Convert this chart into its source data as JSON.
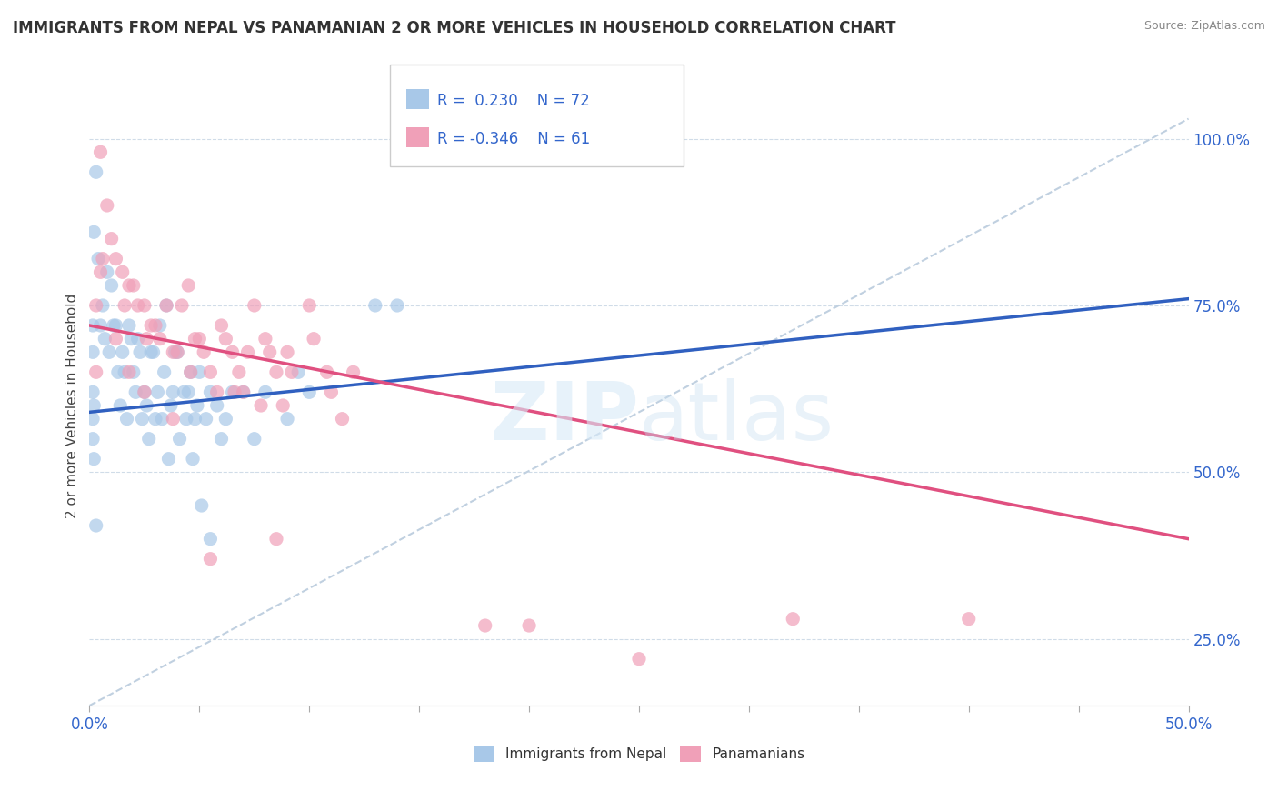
{
  "title": "IMMIGRANTS FROM NEPAL VS PANAMANIAN 2 OR MORE VEHICLES IN HOUSEHOLD CORRELATION CHART",
  "source": "Source: ZipAtlas.com",
  "ylabel_label": "2 or more Vehicles in Household",
  "xmin": 0.0,
  "xmax": 50.0,
  "ymin": 15.0,
  "ymax": 105.0,
  "nepal_R": 0.23,
  "nepal_N": 72,
  "panama_R": -0.346,
  "panama_N": 61,
  "nepal_color": "#a8c8e8",
  "panama_color": "#f0a0b8",
  "nepal_line_color": "#3060c0",
  "panama_line_color": "#e05080",
  "ref_line_color": "#c0d0e0",
  "legend_R_color": "#3366cc",
  "nepal_line_x0": 0.0,
  "nepal_line_y0": 59.0,
  "nepal_line_x1": 50.0,
  "nepal_line_y1": 76.0,
  "panama_line_x0": 0.0,
  "panama_line_y0": 72.0,
  "panama_line_x1": 50.0,
  "panama_line_y1": 40.0,
  "ref_line_x0": 0.0,
  "ref_line_y0": 15.0,
  "ref_line_x1": 50.0,
  "ref_line_y1": 103.0,
  "nepal_scatter": [
    [
      0.2,
      86
    ],
    [
      0.5,
      72
    ],
    [
      0.8,
      80
    ],
    [
      1.0,
      78
    ],
    [
      1.2,
      72
    ],
    [
      1.5,
      68
    ],
    [
      1.8,
      72
    ],
    [
      2.0,
      65
    ],
    [
      2.2,
      70
    ],
    [
      2.5,
      62
    ],
    [
      2.8,
      68
    ],
    [
      3.0,
      58
    ],
    [
      3.2,
      72
    ],
    [
      3.5,
      75
    ],
    [
      3.8,
      62
    ],
    [
      4.0,
      68
    ],
    [
      4.5,
      62
    ],
    [
      4.8,
      58
    ],
    [
      5.0,
      65
    ],
    [
      5.5,
      62
    ],
    [
      6.0,
      55
    ],
    [
      6.5,
      62
    ],
    [
      7.0,
      62
    ],
    [
      7.5,
      55
    ],
    [
      8.0,
      62
    ],
    [
      9.0,
      58
    ],
    [
      10.0,
      62
    ],
    [
      13.0,
      75
    ],
    [
      14.0,
      75
    ],
    [
      0.3,
      95
    ],
    [
      0.4,
      82
    ],
    [
      0.6,
      75
    ],
    [
      0.7,
      70
    ],
    [
      0.9,
      68
    ],
    [
      1.1,
      72
    ],
    [
      1.3,
      65
    ],
    [
      1.4,
      60
    ],
    [
      1.6,
      65
    ],
    [
      1.7,
      58
    ],
    [
      1.9,
      70
    ],
    [
      2.1,
      62
    ],
    [
      2.3,
      68
    ],
    [
      2.4,
      58
    ],
    [
      2.6,
      60
    ],
    [
      2.7,
      55
    ],
    [
      2.9,
      68
    ],
    [
      3.1,
      62
    ],
    [
      3.3,
      58
    ],
    [
      3.4,
      65
    ],
    [
      3.6,
      52
    ],
    [
      3.7,
      60
    ],
    [
      3.9,
      68
    ],
    [
      4.1,
      55
    ],
    [
      4.3,
      62
    ],
    [
      4.4,
      58
    ],
    [
      4.6,
      65
    ],
    [
      4.7,
      52
    ],
    [
      4.9,
      60
    ],
    [
      5.1,
      45
    ],
    [
      5.3,
      58
    ],
    [
      5.5,
      40
    ],
    [
      5.8,
      60
    ],
    [
      6.2,
      58
    ],
    [
      0.15,
      55
    ],
    [
      0.15,
      62
    ],
    [
      0.15,
      68
    ],
    [
      0.15,
      72
    ],
    [
      0.15,
      58
    ],
    [
      0.2,
      52
    ],
    [
      0.2,
      60
    ],
    [
      0.3,
      42
    ],
    [
      9.5,
      65
    ]
  ],
  "panama_scatter": [
    [
      0.5,
      98
    ],
    [
      1.0,
      85
    ],
    [
      1.5,
      80
    ],
    [
      2.0,
      78
    ],
    [
      2.5,
      75
    ],
    [
      3.0,
      72
    ],
    [
      3.5,
      75
    ],
    [
      4.0,
      68
    ],
    [
      4.5,
      78
    ],
    [
      5.0,
      70
    ],
    [
      5.5,
      65
    ],
    [
      6.0,
      72
    ],
    [
      6.5,
      68
    ],
    [
      7.0,
      62
    ],
    [
      7.5,
      75
    ],
    [
      8.0,
      70
    ],
    [
      8.5,
      65
    ],
    [
      9.0,
      68
    ],
    [
      10.0,
      75
    ],
    [
      11.0,
      62
    ],
    [
      12.0,
      65
    ],
    [
      0.8,
      90
    ],
    [
      1.2,
      82
    ],
    [
      1.8,
      78
    ],
    [
      2.2,
      75
    ],
    [
      2.8,
      72
    ],
    [
      3.2,
      70
    ],
    [
      3.8,
      68
    ],
    [
      4.2,
      75
    ],
    [
      4.8,
      70
    ],
    [
      5.2,
      68
    ],
    [
      5.8,
      62
    ],
    [
      6.2,
      70
    ],
    [
      6.8,
      65
    ],
    [
      7.2,
      68
    ],
    [
      7.8,
      60
    ],
    [
      8.2,
      68
    ],
    [
      8.8,
      60
    ],
    [
      9.2,
      65
    ],
    [
      10.2,
      70
    ],
    [
      10.8,
      65
    ],
    [
      11.5,
      58
    ],
    [
      0.3,
      75
    ],
    [
      0.6,
      82
    ],
    [
      1.6,
      75
    ],
    [
      2.6,
      70
    ],
    [
      4.6,
      65
    ],
    [
      6.6,
      62
    ],
    [
      5.5,
      37
    ],
    [
      8.5,
      40
    ],
    [
      20.0,
      27
    ],
    [
      32.0,
      28
    ],
    [
      18.0,
      27
    ],
    [
      40.0,
      28
    ],
    [
      25.0,
      22
    ],
    [
      0.3,
      65
    ],
    [
      1.2,
      70
    ],
    [
      2.5,
      62
    ],
    [
      3.8,
      58
    ],
    [
      0.5,
      80
    ],
    [
      1.8,
      65
    ]
  ]
}
